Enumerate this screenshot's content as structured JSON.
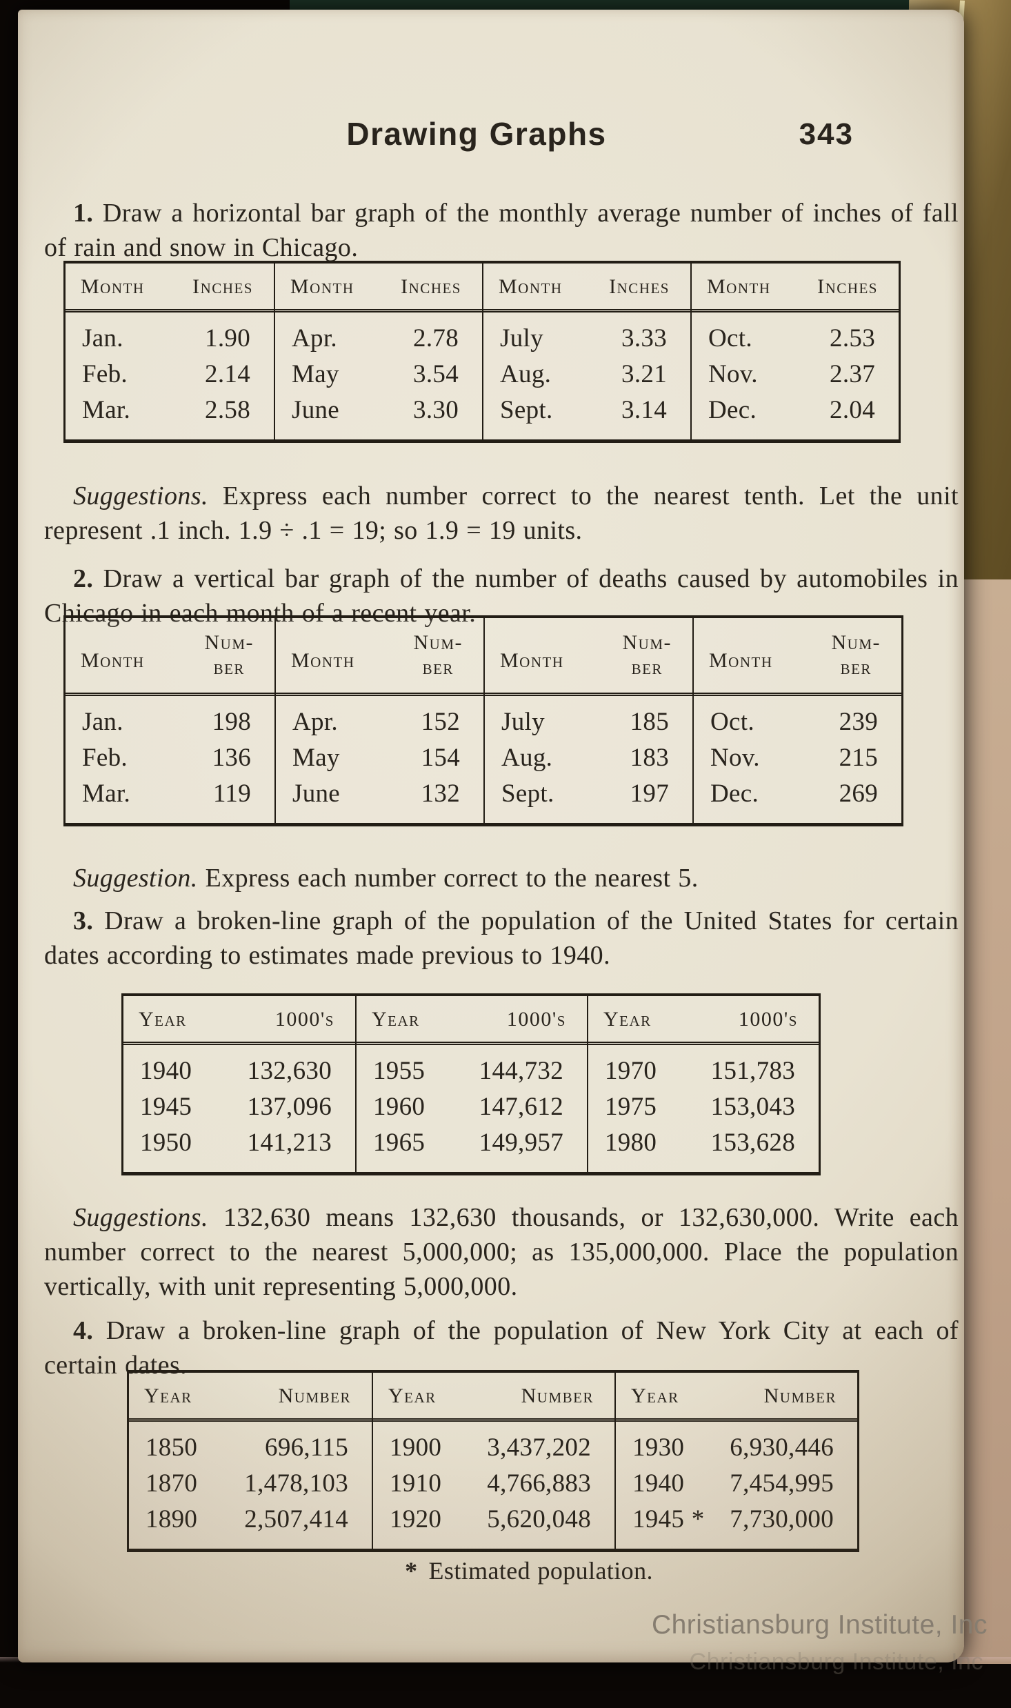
{
  "colors": {
    "paper": "#e9e3d3",
    "ink": "#29241d",
    "photo_background": "#0b0705",
    "book_edge_gold": "#8a7440",
    "book_edge_tan": "#c0a589",
    "watermark_gray": "#867d70"
  },
  "header": {
    "title": "Drawing Graphs",
    "page_number": "343"
  },
  "p1": {
    "num": "1.",
    "text": "Draw a horizontal bar graph of the monthly average number of inches of fall of rain and snow in Chicago."
  },
  "t1": {
    "headers": [
      "Month",
      "Inches"
    ],
    "groups": [
      {
        "rows": [
          [
            "Jan.",
            "1.90"
          ],
          [
            "Feb.",
            "2.14"
          ],
          [
            "Mar.",
            "2.58"
          ]
        ]
      },
      {
        "rows": [
          [
            "Apr.",
            "2.78"
          ],
          [
            "May",
            "3.54"
          ],
          [
            "June",
            "3.30"
          ]
        ]
      },
      {
        "rows": [
          [
            "July",
            "3.33"
          ],
          [
            "Aug.",
            "3.21"
          ],
          [
            "Sept.",
            "3.14"
          ]
        ]
      },
      {
        "rows": [
          [
            "Oct.",
            "2.53"
          ],
          [
            "Nov.",
            "2.37"
          ],
          [
            "Dec.",
            "2.04"
          ]
        ]
      }
    ]
  },
  "s1": {
    "label": "Suggestions.",
    "text": "Express each number correct to the nearest tenth. Let the unit represent .1 inch. 1.9 ÷ .1 = 19; so 1.9 = 19 units."
  },
  "p2": {
    "num": "2.",
    "text": "Draw a vertical bar graph of the number of deaths caused by automobiles in Chicago in each month of a recent year."
  },
  "t2": {
    "header_month": "Month",
    "header_number_line1": "Num-",
    "header_number_line2": "ber",
    "groups": [
      {
        "rows": [
          [
            "Jan.",
            "198"
          ],
          [
            "Feb.",
            "136"
          ],
          [
            "Mar.",
            "119"
          ]
        ]
      },
      {
        "rows": [
          [
            "Apr.",
            "152"
          ],
          [
            "May",
            "154"
          ],
          [
            "June",
            "132"
          ]
        ]
      },
      {
        "rows": [
          [
            "July",
            "185"
          ],
          [
            "Aug.",
            "183"
          ],
          [
            "Sept.",
            "197"
          ]
        ]
      },
      {
        "rows": [
          [
            "Oct.",
            "239"
          ],
          [
            "Nov.",
            "215"
          ],
          [
            "Dec.",
            "269"
          ]
        ]
      }
    ]
  },
  "s2": {
    "label": "Suggestion.",
    "text": "Express each number correct to the nearest 5."
  },
  "p3": {
    "num": "3.",
    "text": "Draw a broken-line graph of the population of the United States for certain dates according to estimates made previous to 1940."
  },
  "t3": {
    "headers": [
      "Year",
      "1000's"
    ],
    "groups": [
      {
        "rows": [
          [
            "1940",
            "132,630"
          ],
          [
            "1945",
            "137,096"
          ],
          [
            "1950",
            "141,213"
          ]
        ]
      },
      {
        "rows": [
          [
            "1955",
            "144,732"
          ],
          [
            "1960",
            "147,612"
          ],
          [
            "1965",
            "149,957"
          ]
        ]
      },
      {
        "rows": [
          [
            "1970",
            "151,783"
          ],
          [
            "1975",
            "153,043"
          ],
          [
            "1980",
            "153,628"
          ]
        ]
      }
    ]
  },
  "s3": {
    "label": "Suggestions.",
    "text": "132,630 means 132,630 thousands, or 132,630,000. Write each number correct to the nearest 5,000,000; as 135,000,000. Place the population vertically, with unit representing 5,000,000."
  },
  "p4": {
    "num": "4.",
    "text": "Draw a broken-line graph of the population of New York City at each of certain dates."
  },
  "t4": {
    "headers": [
      "Year",
      "Number"
    ],
    "groups": [
      {
        "rows": [
          [
            "1850",
            "696,115"
          ],
          [
            "1870",
            "1,478,103"
          ],
          [
            "1890",
            "2,507,414"
          ]
        ]
      },
      {
        "rows": [
          [
            "1900",
            "3,437,202"
          ],
          [
            "1910",
            "4,766,883"
          ],
          [
            "1920",
            "5,620,048"
          ]
        ]
      },
      {
        "rows": [
          [
            "1930",
            "6,930,446"
          ],
          [
            "1940",
            "7,454,995"
          ],
          [
            "1945 *",
            "7,730,000"
          ]
        ]
      }
    ]
  },
  "footnote": {
    "marker": "*",
    "text": "Estimated population."
  },
  "watermark": "Christiansburg Institute, Inc"
}
